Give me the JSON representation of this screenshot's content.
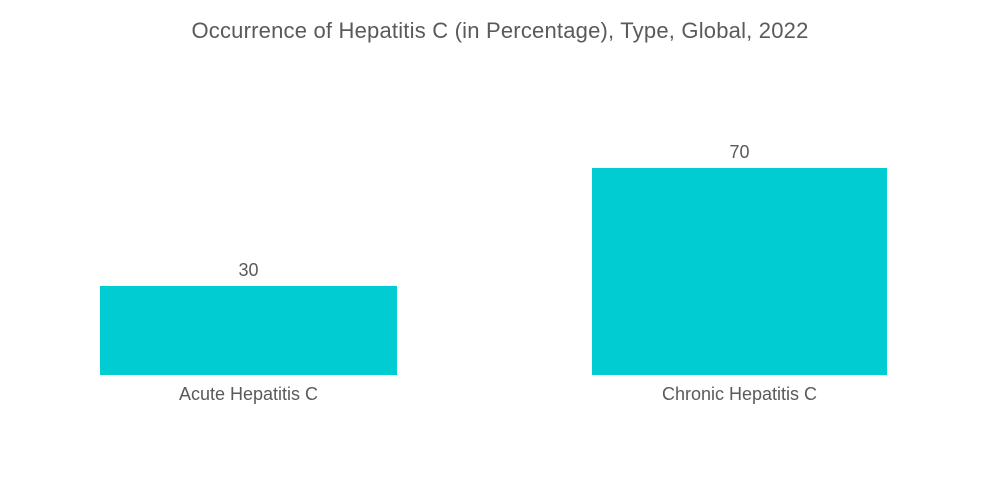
{
  "chart_data": {
    "type": "bar",
    "title": "Occurrence of Hepatitis C (in Percentage), Type, Global, 2022",
    "categories": [
      "Acute Hepatitis C",
      "Chronic Hepatitis C"
    ],
    "values": [
      30,
      70
    ],
    "series": [
      {
        "name": "Occurrence of Hepatitis C (%)",
        "values": [
          30,
          70
        ]
      }
    ],
    "xlabel": "",
    "ylabel": "",
    "ylim": [
      0,
      75
    ],
    "grid": false,
    "legend": false,
    "axes_visible": false,
    "value_labels_visible": true,
    "bar_color": "#00ccd2",
    "text_color": "#595a5c",
    "background_color": "#ffffff"
  }
}
